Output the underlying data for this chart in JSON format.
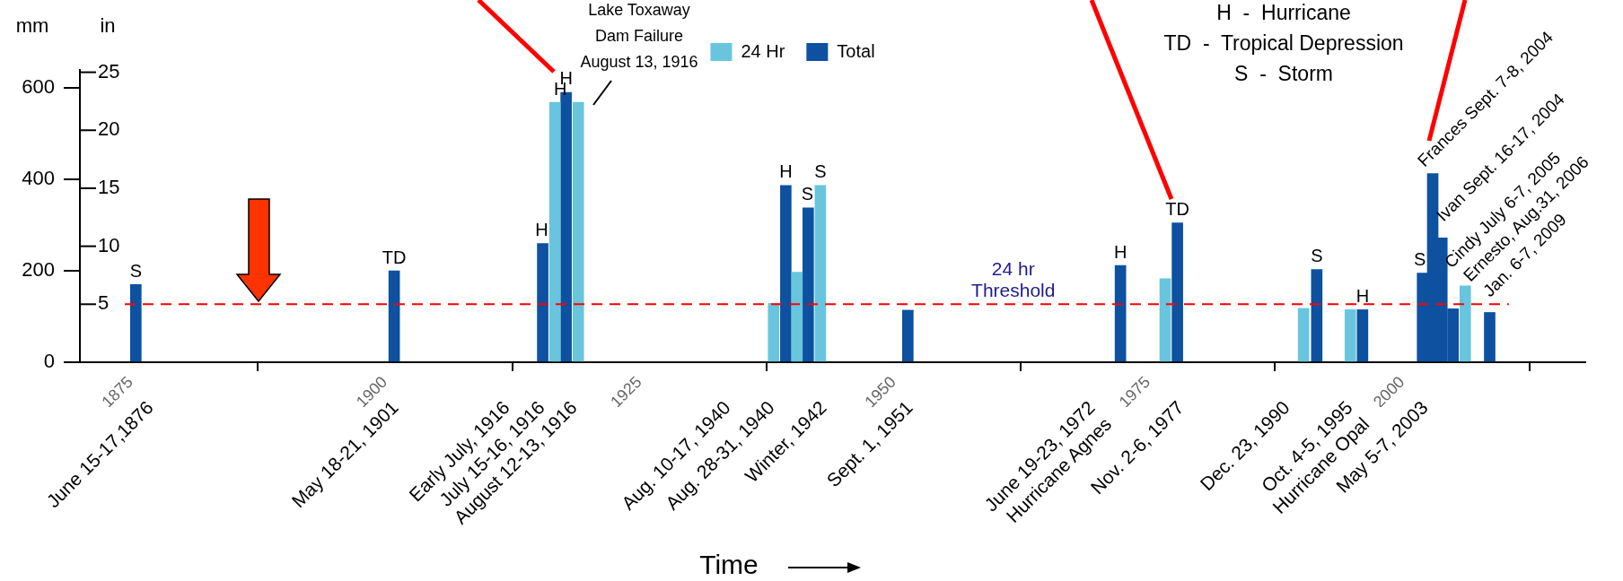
{
  "chart_data": {
    "type": "bar",
    "ylabel": "mm",
    "y2label": "in",
    "xlim": [
      1870,
      2018
    ],
    "xticks": [
      1875,
      1900,
      1925,
      1950,
      1975,
      2000
    ],
    "ylim": [
      0,
      640
    ],
    "yticks": [
      0,
      200,
      400,
      600
    ],
    "y2lim": [
      0,
      25.2
    ],
    "y2ticks": [
      5,
      10,
      15,
      20,
      25
    ],
    "legend": "top",
    "series": [
      {
        "name": "24 Hr",
        "color": "#68c5dd",
        "x": [
          1916.7,
          1919.0,
          1938.2,
          1940.5,
          1942.8,
          1976.7,
          1990.3,
          1994.9,
          2006.2
        ],
        "values": [
          569,
          569,
          129,
          197,
          387,
          183,
          118,
          115,
          167
        ],
        "value_labels": [
          null,
          "H",
          null,
          null,
          "S",
          null,
          null,
          null,
          null
        ]
      },
      {
        "name": "Total",
        "color": "#0d51a0",
        "x": [
          1875.5,
          1900.9,
          1915.5,
          1917.8,
          1939.4,
          1941.6,
          1951.4,
          1972.3,
          1977.9,
          1991.6,
          1996.1,
          2002.0,
          2003.0,
          2003.9,
          2005.0,
          2008.6
        ],
        "values": [
          170,
          200,
          260,
          591,
          387,
          338,
          114,
          212,
          305,
          203,
          115,
          195,
          413,
          272,
          117,
          109
        ],
        "value_labels": [
          "S",
          "TD",
          "H",
          "H",
          "H",
          "S",
          null,
          "H",
          "TD",
          "S",
          "H",
          "S",
          null,
          null,
          null,
          null
        ]
      }
    ],
    "ref_lines": [
      {
        "axis": "y",
        "value": 127,
        "label": "24 hr\nThreshold",
        "color": "#ff0000",
        "line_style": "dashed"
      }
    ],
    "annotations": [
      "Lake Toxaway\nDam Failure\nAugust 13, 1916",
      "H  -  Hurricane",
      "TD  -  Tropical Depression",
      "S  -  Storm",
      "June 15-17,1876",
      "May 18-21, 1901",
      "Early July, 1916",
      "July 15-16, 1916",
      "August 12-13, 1916",
      "Aug. 10-17, 1940",
      "Aug. 28-31, 1940",
      "Winter, 1942",
      "Sept. 1, 1951",
      "June 19-23, 1972\nHurricane Agnes",
      "Nov. 2-6, 1977",
      "Dec. 23, 1990",
      "Oct. 4-5, 1995\nHurricane Opal",
      "May 5-7, 2003",
      "Frances Sept. 7-8, 2004",
      "Ivan Sept. 16-17, 2004",
      "Cindy July 6-7, 2005",
      "Ernesto, Aug.31, 2006",
      "Jan. 6-7, 2009",
      "Time"
    ]
  }
}
